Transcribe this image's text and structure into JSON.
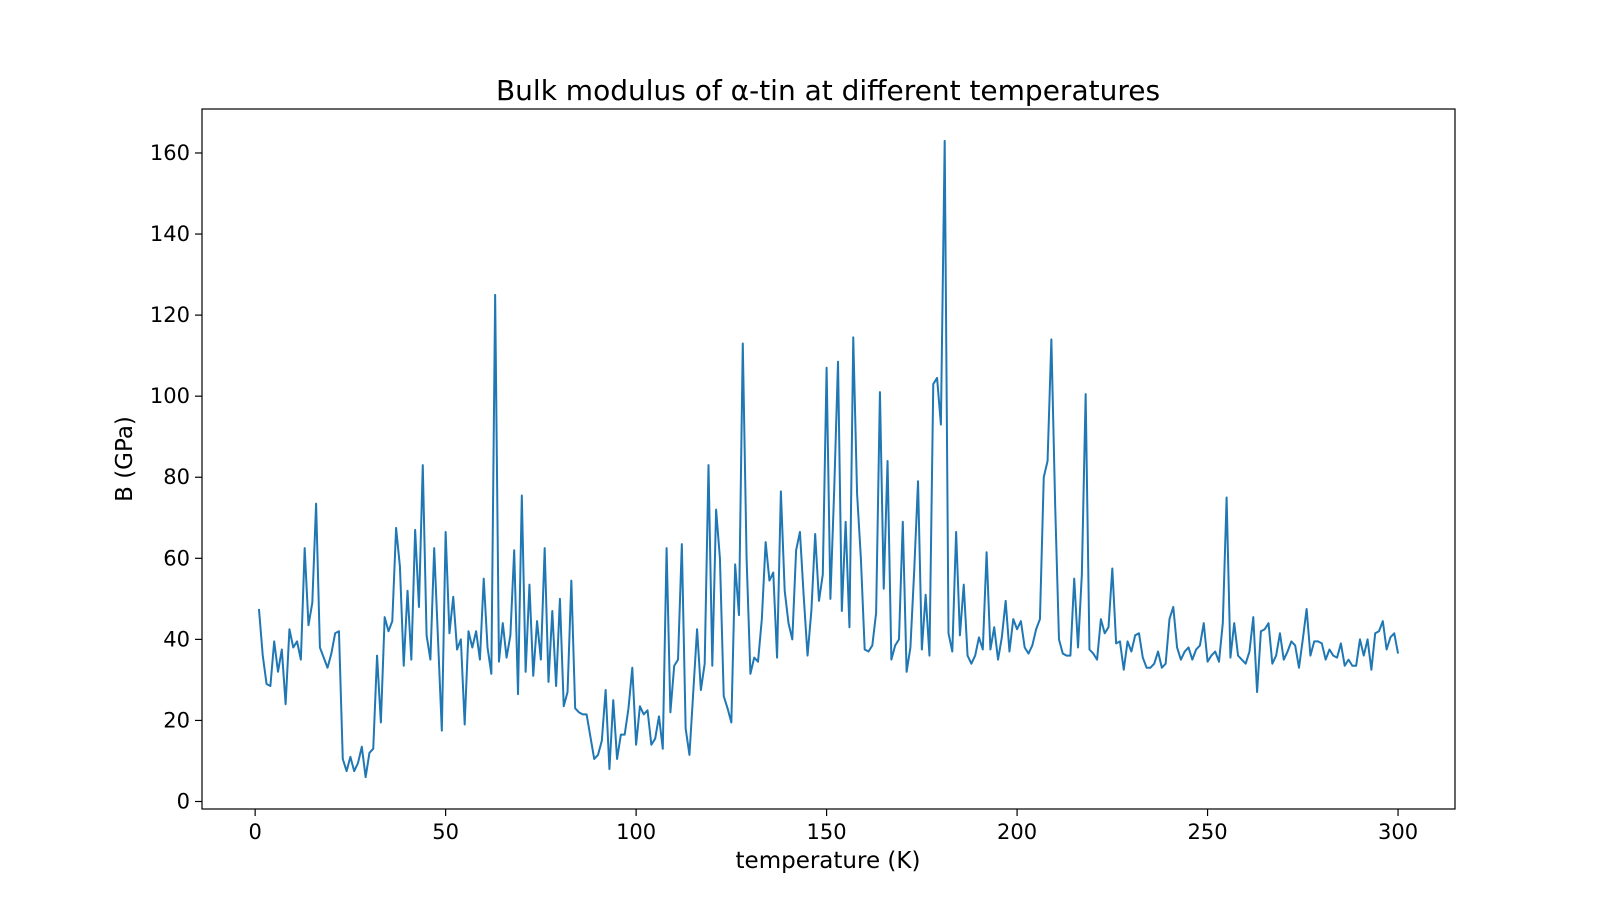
{
  "chart_data": {
    "type": "line",
    "title": "Bulk modulus of α-tin at different temperatures",
    "xlabel": "temperature (K)",
    "ylabel": "B (GPa)",
    "x": [
      1,
      2,
      3,
      4,
      5,
      6,
      7,
      8,
      9,
      10,
      11,
      12,
      13,
      14,
      15,
      16,
      17,
      18,
      19,
      20,
      21,
      22,
      23,
      24,
      25,
      26,
      27,
      28,
      29,
      30,
      31,
      32,
      33,
      34,
      35,
      36,
      37,
      38,
      39,
      40,
      41,
      42,
      43,
      44,
      45,
      46,
      47,
      48,
      49,
      50,
      51,
      52,
      53,
      54,
      55,
      56,
      57,
      58,
      59,
      60,
      61,
      62,
      63,
      64,
      65,
      66,
      67,
      68,
      69,
      70,
      71,
      72,
      73,
      74,
      75,
      76,
      77,
      78,
      79,
      80,
      81,
      82,
      83,
      84,
      85,
      86,
      87,
      88,
      89,
      90,
      91,
      92,
      93,
      94,
      95,
      96,
      97,
      98,
      99,
      100,
      101,
      102,
      103,
      104,
      105,
      106,
      107,
      108,
      109,
      110,
      111,
      112,
      113,
      114,
      115,
      116,
      117,
      118,
      119,
      120,
      121,
      122,
      123,
      124,
      125,
      126,
      127,
      128,
      129,
      130,
      131,
      132,
      133,
      134,
      135,
      136,
      137,
      138,
      139,
      140,
      141,
      142,
      143,
      144,
      145,
      146,
      147,
      148,
      149,
      150,
      151,
      152,
      153,
      154,
      155,
      156,
      157,
      158,
      159,
      160,
      161,
      162,
      163,
      164,
      165,
      166,
      167,
      168,
      169,
      170,
      171,
      172,
      173,
      174,
      175,
      176,
      177,
      178,
      179,
      180,
      181,
      182,
      183,
      184,
      185,
      186,
      187,
      188,
      189,
      190,
      191,
      192,
      193,
      194,
      195,
      196,
      197,
      198,
      199,
      200,
      201,
      202,
      203,
      204,
      205,
      206,
      207,
      208,
      209,
      210,
      211,
      212,
      213,
      214,
      215,
      216,
      217,
      218,
      219,
      220,
      221,
      222,
      223,
      224,
      225,
      226,
      227,
      228,
      229,
      230,
      231,
      232,
      233,
      234,
      235,
      236,
      237,
      238,
      239,
      240,
      241,
      242,
      243,
      244,
      245,
      246,
      247,
      248,
      249,
      250,
      251,
      252,
      253,
      254,
      255,
      256,
      257,
      258,
      259,
      260,
      261,
      262,
      263,
      264,
      265,
      266,
      267,
      268,
      269,
      270,
      271,
      272,
      273,
      274,
      275,
      276,
      277,
      278,
      279,
      280,
      281,
      282,
      283,
      284,
      285,
      286,
      287,
      288,
      289,
      290,
      291,
      292,
      293,
      294,
      295,
      296,
      297,
      298,
      299,
      300
    ],
    "series": [
      {
        "color": "#1f77b4",
        "values": [
          47.5,
          36,
          29,
          28.5,
          39.5,
          32,
          37.5,
          24,
          42.5,
          38,
          39.5,
          35,
          62.5,
          43.5,
          49,
          73.5,
          38,
          35.5,
          33,
          36.5,
          41.5,
          42,
          10.5,
          7.5,
          11,
          7.5,
          9.5,
          13.5,
          6,
          12,
          13,
          36,
          19.5,
          45.5,
          42,
          44.5,
          67.5,
          58,
          33.5,
          52,
          35,
          67,
          48,
          83,
          41,
          35,
          62.5,
          40,
          17.5,
          66.5,
          41.5,
          50.5,
          37.5,
          40,
          19,
          42,
          38,
          42,
          35,
          55,
          38,
          31.5,
          125,
          34.5,
          44,
          35.5,
          41,
          62,
          26.5,
          75.5,
          32,
          53.5,
          31,
          44.5,
          35,
          62.5,
          29.5,
          47,
          28.5,
          50,
          23.5,
          27,
          54.5,
          23,
          22,
          21.5,
          21.5,
          16,
          10.5,
          11.5,
          15,
          27.5,
          8,
          25,
          10.5,
          16.5,
          16.5,
          23,
          33,
          14,
          23.5,
          21.5,
          22.5,
          14,
          15.5,
          21,
          13,
          62.5,
          22,
          33.5,
          35,
          63.5,
          18,
          11.5,
          27,
          42.5,
          27.5,
          34,
          83,
          33.5,
          72,
          60,
          26,
          23,
          19.5,
          58.5,
          46,
          113,
          60,
          31.5,
          35.5,
          34.5,
          45,
          64,
          54.5,
          56.5,
          35.5,
          76.5,
          52,
          44,
          40,
          62,
          66.5,
          50.5,
          36,
          47,
          66,
          49.5,
          56,
          107,
          50,
          77,
          108.5,
          47,
          69,
          43,
          114.5,
          76,
          60,
          37.5,
          37,
          38.5,
          46.5,
          101,
          52.5,
          84,
          35,
          38.5,
          40,
          69,
          32,
          38,
          57,
          79,
          37.5,
          51,
          36,
          103,
          104.5,
          93,
          163,
          41.5,
          37,
          66.5,
          41,
          53.5,
          36,
          34,
          36,
          40.5,
          37.5,
          61.5,
          37.5,
          43,
          35,
          40.5,
          49.5,
          37,
          45,
          42.5,
          44.5,
          38,
          36.5,
          38.5,
          42.5,
          45,
          80,
          84,
          114,
          73,
          40,
          36.5,
          36,
          36,
          55,
          38,
          56,
          100.5,
          37.5,
          36.5,
          35,
          45,
          41.5,
          43,
          57.5,
          39,
          39.5,
          32.5,
          39.5,
          37,
          41,
          41.5,
          35.5,
          33,
          33,
          34,
          37,
          33,
          34,
          45,
          48,
          38,
          35,
          37,
          38,
          35,
          37.5,
          38.5,
          44,
          34.5,
          36,
          37,
          34.5,
          44,
          75,
          35.5,
          44,
          36,
          35,
          34,
          37,
          45.5,
          27,
          42,
          42.5,
          44,
          34,
          36,
          41.5,
          35,
          37,
          39.5,
          38.5,
          33,
          40,
          47.5,
          36,
          39.5,
          39.5,
          39,
          35,
          37.5,
          36,
          35.5,
          39,
          33.5,
          35,
          33.5,
          33.5,
          40,
          36,
          40,
          32.5,
          41.5,
          42,
          44.5,
          37.5,
          40.5,
          41.5,
          36.5
        ]
      }
    ],
    "xlim": [
      -13.95,
      314.95
    ],
    "ylim": [
      -1.85,
      170.85
    ],
    "xticks": [
      0,
      50,
      100,
      150,
      200,
      250,
      300
    ],
    "yticks": [
      0,
      20,
      40,
      60,
      80,
      100,
      120,
      140,
      160
    ],
    "grid": false
  }
}
